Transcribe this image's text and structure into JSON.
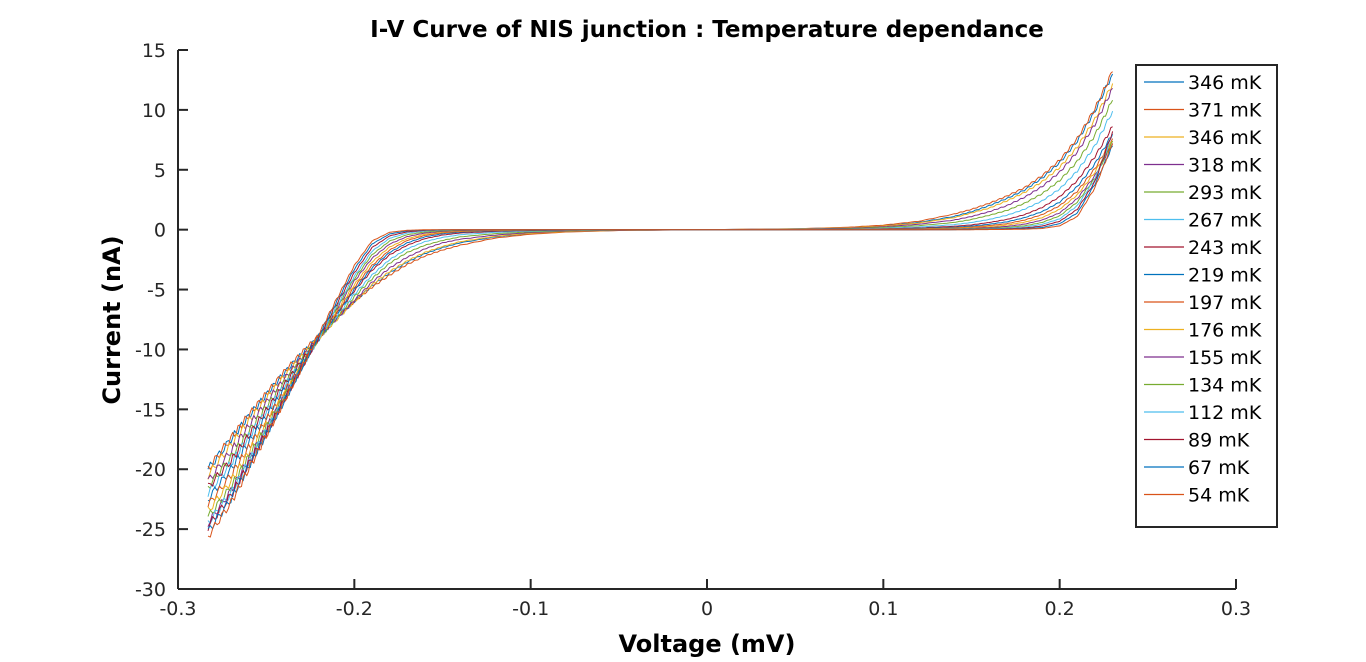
{
  "chart_data": {
    "type": "line",
    "title": "I-V Curve of NIS junction : Temperature dependance",
    "xlabel": "Voltage (mV)",
    "ylabel": "Current (nA)",
    "xlim": [
      -0.3,
      0.3
    ],
    "ylim": [
      -30,
      15
    ],
    "xticks": [
      -0.3,
      -0.2,
      -0.1,
      0,
      0.1,
      0.2,
      0.3
    ],
    "xtick_labels": [
      "-0.3",
      "-0.2",
      "-0.1",
      "0",
      "0.1",
      "0.2",
      "0.3"
    ],
    "yticks": [
      -30,
      -25,
      -20,
      -15,
      -10,
      -5,
      0,
      5,
      10,
      15
    ],
    "ytick_labels": [
      "-30",
      "-25",
      "-20",
      "-15",
      "-10",
      "-5",
      "0",
      "5",
      "10",
      "15"
    ],
    "grid": false,
    "legend_position": "top-right",
    "x": [
      -0.283,
      -0.27,
      -0.26,
      -0.25,
      -0.24,
      -0.23,
      -0.22,
      -0.21,
      -0.2,
      -0.19,
      -0.18,
      -0.17,
      -0.16,
      -0.15,
      -0.14,
      -0.12,
      -0.1,
      -0.08,
      -0.05,
      0,
      0.05,
      0.08,
      0.1,
      0.12,
      0.14,
      0.15,
      0.16,
      0.17,
      0.18,
      0.19,
      0.2,
      0.21,
      0.22,
      0.23
    ],
    "series": [
      {
        "name": "346 mK",
        "color": "#0072BD",
        "values": [
          -20.0,
          -17.5,
          -15.6,
          -13.8,
          -12.0,
          -10.4,
          -8.9,
          -7.4,
          -6.0,
          -4.7,
          -3.6,
          -2.7,
          -2.0,
          -1.5,
          -1.1,
          -0.6,
          -0.32,
          -0.18,
          -0.06,
          0.0,
          0.06,
          0.18,
          0.32,
          0.6,
          1.1,
          1.5,
          2.0,
          2.6,
          3.3,
          4.3,
          5.6,
          7.4,
          9.9,
          13.0
        ]
      },
      {
        "name": "371 mK",
        "color": "#D95319",
        "values": [
          -20.0,
          -17.4,
          -15.5,
          -13.7,
          -11.9,
          -10.3,
          -8.8,
          -7.3,
          -6.0,
          -4.8,
          -3.8,
          -2.9,
          -2.2,
          -1.7,
          -1.3,
          -0.7,
          -0.38,
          -0.2,
          -0.07,
          0.0,
          0.07,
          0.2,
          0.38,
          0.7,
          1.3,
          1.7,
          2.2,
          2.8,
          3.5,
          4.5,
          5.8,
          7.6,
          10.1,
          13.2
        ]
      },
      {
        "name": "346 mK",
        "color": "#EDB120",
        "values": [
          -20.5,
          -18.0,
          -16.0,
          -14.1,
          -12.3,
          -10.6,
          -9.0,
          -7.5,
          -6.0,
          -4.6,
          -3.5,
          -2.6,
          -1.9,
          -1.4,
          -1.0,
          -0.55,
          -0.3,
          -0.16,
          -0.05,
          0.0,
          0.05,
          0.16,
          0.3,
          0.55,
          1.0,
          1.4,
          1.8,
          2.4,
          3.1,
          4.0,
          5.2,
          6.9,
          9.2,
          12.2
        ]
      },
      {
        "name": "318 mK",
        "color": "#7E2F8E",
        "values": [
          -21.0,
          -18.5,
          -16.4,
          -14.4,
          -12.5,
          -10.7,
          -9.0,
          -7.4,
          -5.9,
          -4.4,
          -3.2,
          -2.3,
          -1.6,
          -1.1,
          -0.8,
          -0.45,
          -0.24,
          -0.12,
          -0.04,
          0.0,
          0.04,
          0.12,
          0.24,
          0.45,
          0.8,
          1.1,
          1.5,
          2.0,
          2.7,
          3.6,
          4.8,
          6.5,
          8.8,
          11.8
        ]
      },
      {
        "name": "293 mK",
        "color": "#77AC30",
        "values": [
          -21.5,
          -19.0,
          -16.9,
          -14.8,
          -12.8,
          -10.9,
          -9.1,
          -7.3,
          -5.6,
          -4.1,
          -2.8,
          -1.9,
          -1.3,
          -0.9,
          -0.6,
          -0.33,
          -0.18,
          -0.09,
          -0.03,
          0.0,
          0.03,
          0.09,
          0.18,
          0.33,
          0.6,
          0.85,
          1.2,
          1.6,
          2.2,
          3.0,
          4.1,
          5.7,
          7.9,
          10.8
        ]
      },
      {
        "name": "267 mK",
        "color": "#4DBEEE",
        "values": [
          -22.0,
          -19.5,
          -17.3,
          -15.2,
          -13.1,
          -11.1,
          -9.1,
          -7.2,
          -5.4,
          -3.8,
          -2.5,
          -1.6,
          -1.0,
          -0.65,
          -0.42,
          -0.22,
          -0.12,
          -0.06,
          -0.02,
          0.0,
          0.02,
          0.06,
          0.12,
          0.22,
          0.42,
          0.6,
          0.85,
          1.2,
          1.7,
          2.4,
          3.4,
          4.9,
          7.0,
          9.9
        ]
      },
      {
        "name": "243 mK",
        "color": "#A2142F",
        "values": [
          -21.5,
          -19.3,
          -17.2,
          -15.1,
          -13.0,
          -11.0,
          -9.0,
          -7.0,
          -5.1,
          -3.4,
          -2.1,
          -1.3,
          -0.75,
          -0.45,
          -0.28,
          -0.14,
          -0.07,
          -0.04,
          -0.01,
          0.0,
          0.01,
          0.04,
          0.07,
          0.14,
          0.28,
          0.4,
          0.6,
          0.85,
          1.25,
          1.85,
          2.75,
          4.1,
          6.1,
          8.6
        ]
      },
      {
        "name": "219 mK",
        "color": "#0072BD",
        "values": [
          -22.5,
          -20.0,
          -17.8,
          -15.6,
          -13.4,
          -11.2,
          -9.1,
          -7.0,
          -5.0,
          -3.2,
          -1.9,
          -1.1,
          -0.6,
          -0.34,
          -0.2,
          -0.1,
          -0.05,
          -0.03,
          -0.01,
          0.0,
          0.01,
          0.03,
          0.05,
          0.1,
          0.2,
          0.3,
          0.45,
          0.65,
          1.0,
          1.5,
          2.3,
          3.6,
          5.5,
          8.0
        ]
      },
      {
        "name": "197 mK",
        "color": "#D95319",
        "values": [
          -23.0,
          -20.5,
          -18.2,
          -15.9,
          -13.6,
          -11.3,
          -9.1,
          -6.9,
          -4.8,
          -3.0,
          -1.7,
          -0.9,
          -0.48,
          -0.26,
          -0.15,
          -0.07,
          -0.04,
          -0.02,
          -0.01,
          0.0,
          0.01,
          0.02,
          0.04,
          0.07,
          0.15,
          0.22,
          0.34,
          0.5,
          0.8,
          1.25,
          2.0,
          3.2,
          5.1,
          7.6
        ]
      },
      {
        "name": "176 mK",
        "color": "#EDB120",
        "values": [
          -23.5,
          -21.0,
          -18.6,
          -16.2,
          -13.8,
          -11.4,
          -9.1,
          -6.8,
          -4.6,
          -2.7,
          -1.45,
          -0.75,
          -0.38,
          -0.2,
          -0.11,
          -0.05,
          -0.03,
          -0.01,
          0.0,
          0.0,
          0.0,
          0.01,
          0.03,
          0.05,
          0.11,
          0.16,
          0.25,
          0.38,
          0.62,
          1.0,
          1.7,
          2.9,
          4.8,
          7.4
        ]
      },
      {
        "name": "155 mK",
        "color": "#7E2F8E",
        "values": [
          -24.5,
          -21.8,
          -19.2,
          -16.6,
          -14.0,
          -11.5,
          -9.0,
          -6.6,
          -4.3,
          -2.4,
          -1.2,
          -0.58,
          -0.28,
          -0.14,
          -0.07,
          -0.03,
          -0.02,
          -0.01,
          0.0,
          0.0,
          0.0,
          0.01,
          0.02,
          0.03,
          0.07,
          0.11,
          0.17,
          0.27,
          0.46,
          0.8,
          1.4,
          2.6,
          4.5,
          7.2
        ]
      },
      {
        "name": "134 mK",
        "color": "#77AC30",
        "values": [
          -24.0,
          -21.5,
          -19.0,
          -16.5,
          -14.0,
          -11.5,
          -9.0,
          -6.5,
          -4.1,
          -2.1,
          -0.95,
          -0.42,
          -0.19,
          -0.09,
          -0.04,
          -0.02,
          -0.01,
          0.0,
          0.0,
          0.0,
          0.0,
          0.0,
          0.01,
          0.02,
          0.04,
          0.07,
          0.11,
          0.18,
          0.32,
          0.6,
          1.15,
          2.3,
          4.3,
          7.4
        ]
      },
      {
        "name": "112 mK",
        "color": "#4DBEEE",
        "values": [
          -24.5,
          -22.0,
          -19.4,
          -16.8,
          -14.2,
          -11.6,
          -9.0,
          -6.4,
          -3.9,
          -1.8,
          -0.72,
          -0.28,
          -0.11,
          -0.05,
          -0.02,
          -0.01,
          0.0,
          0.0,
          0.0,
          0.0,
          0.0,
          0.0,
          0.0,
          0.01,
          0.02,
          0.04,
          0.07,
          0.12,
          0.22,
          0.44,
          0.9,
          2.0,
          4.2,
          7.9
        ]
      },
      {
        "name": "89 mK",
        "color": "#A2142F",
        "values": [
          -24.8,
          -22.2,
          -19.6,
          -17.0,
          -14.3,
          -11.6,
          -8.9,
          -6.2,
          -3.6,
          -1.5,
          -0.52,
          -0.18,
          -0.06,
          -0.02,
          -0.01,
          0.0,
          0.0,
          0.0,
          0.0,
          0.0,
          0.0,
          0.0,
          0.0,
          0.0,
          0.01,
          0.02,
          0.04,
          0.07,
          0.14,
          0.3,
          0.7,
          1.7,
          4.0,
          8.2
        ]
      },
      {
        "name": "67 mK",
        "color": "#0072BD",
        "values": [
          -25.2,
          -22.5,
          -19.8,
          -17.1,
          -14.4,
          -11.6,
          -8.8,
          -6.0,
          -3.3,
          -1.2,
          -0.36,
          -0.1,
          -0.03,
          -0.01,
          0.0,
          0.0,
          0.0,
          0.0,
          0.0,
          0.0,
          0.0,
          0.0,
          0.0,
          0.0,
          0.0,
          0.01,
          0.02,
          0.04,
          0.08,
          0.18,
          0.5,
          1.4,
          3.8,
          7.0
        ]
      },
      {
        "name": "54 mK",
        "color": "#D95319",
        "values": [
          -25.6,
          -22.8,
          -20.0,
          -17.2,
          -14.4,
          -11.6,
          -8.7,
          -5.8,
          -3.0,
          -0.95,
          -0.22,
          -0.05,
          -0.01,
          0.0,
          0.0,
          0.0,
          0.0,
          0.0,
          0.0,
          0.0,
          0.0,
          0.0,
          0.0,
          0.0,
          0.0,
          0.0,
          0.01,
          0.02,
          0.04,
          0.1,
          0.32,
          1.1,
          3.5,
          7.2
        ]
      }
    ]
  }
}
